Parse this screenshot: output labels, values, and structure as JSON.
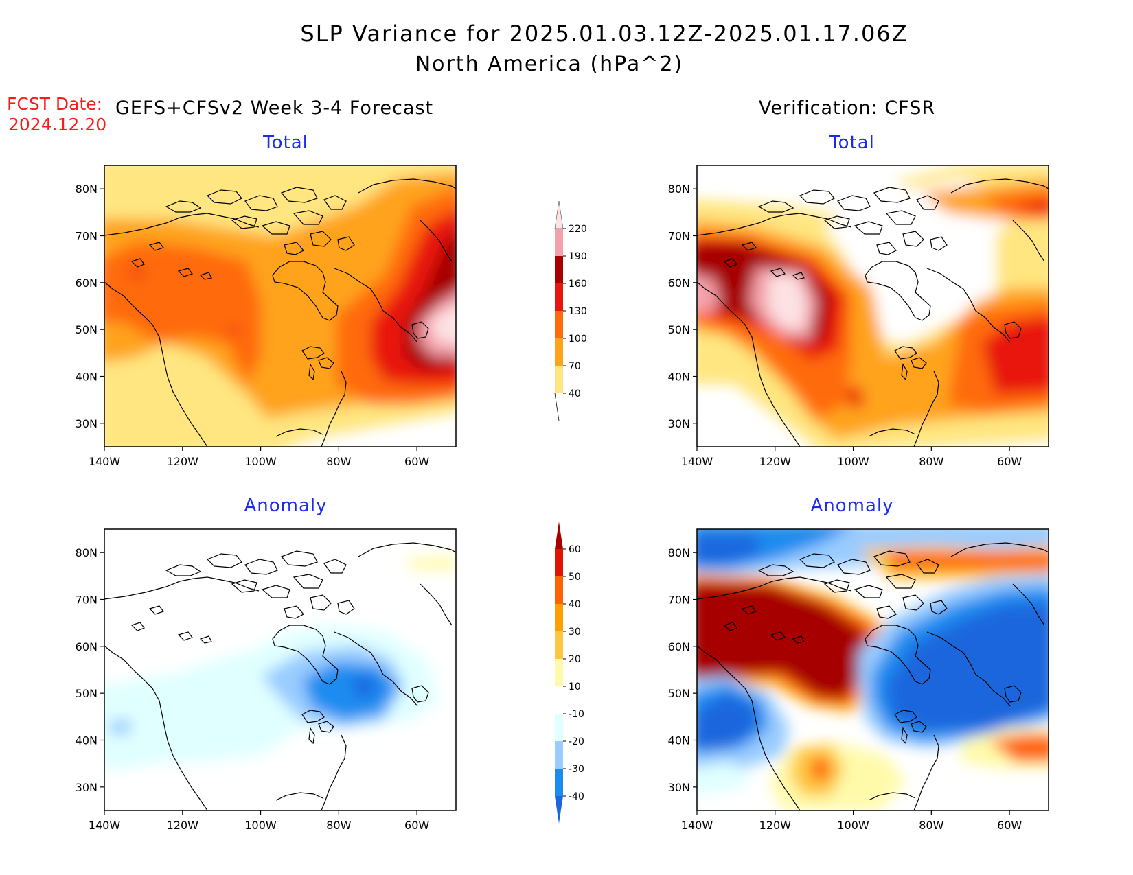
{
  "title": "SLP Variance for 2025.01.03.12Z-2025.01.17.06Z",
  "subtitle": "North America (hPa^2)",
  "forecast": {
    "label": "FCST Date:",
    "date": "2024.12.20",
    "header": "GEFS+CFSv2 Week 3-4 Forecast"
  },
  "verification": {
    "header": "Verification: CFSR"
  },
  "panels": [
    {
      "id": "fcst-total",
      "title": "Total"
    },
    {
      "id": "verif-total",
      "title": "Total"
    },
    {
      "id": "fcst-anomaly",
      "title": "Anomaly"
    },
    {
      "id": "verif-anomaly",
      "title": "Anomaly"
    }
  ],
  "axes": {
    "lon_labels": [
      "140W",
      "120W",
      "100W",
      "80W",
      "60W"
    ],
    "lat_labels": [
      "30N",
      "40N",
      "50N",
      "60N",
      "70N",
      "80N"
    ],
    "lon_values": [
      -140,
      -120,
      -100,
      -80,
      -60
    ],
    "lat_values": [
      30,
      40,
      50,
      60,
      70,
      80
    ],
    "lon_range": [
      -140,
      -50
    ],
    "lat_range": [
      25,
      85
    ]
  },
  "colorbars": {
    "total": {
      "levels": [
        "40",
        "70",
        "100",
        "130",
        "160",
        "190",
        "220"
      ],
      "colors": [
        "#ffe680",
        "#ffa31a",
        "#ff6a0d",
        "#e8160e",
        "#a60000",
        "#f4a0a8",
        "#fde2e4"
      ]
    },
    "anomaly": {
      "levels": [
        "-40",
        "-30",
        "-20",
        "-10",
        "10",
        "20",
        "30",
        "40",
        "50",
        "60"
      ],
      "colors": [
        "#1a66dd",
        "#1a8cf0",
        "#99ccff",
        "#e0ffff",
        "#ffffff",
        "#fffaaa",
        "#ffc640",
        "#ffa000",
        "#ff6200",
        "#e01500",
        "#a60000"
      ]
    }
  },
  "colors": {
    "title_text": "#000000",
    "fcst_text": "#ff1a1a",
    "panel_title": "#1a2cf0"
  }
}
